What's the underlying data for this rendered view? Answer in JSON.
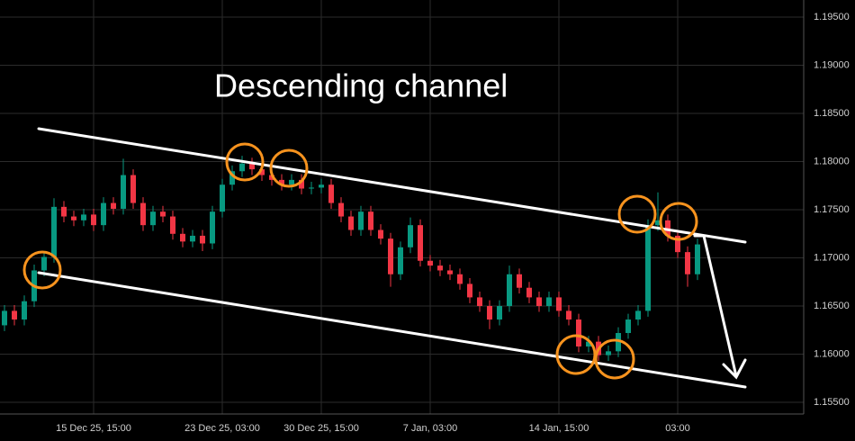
{
  "chart_data": {
    "type": "candlestick",
    "title": "Descending channel",
    "categories": [
      null,
      null,
      null,
      null,
      null,
      null,
      null,
      null,
      null,
      "15 Dec 25, 15:00",
      null,
      null,
      null,
      null,
      null,
      null,
      null,
      null,
      null,
      null,
      null,
      null,
      "23 Dec 25, 03:00",
      null,
      null,
      null,
      null,
      null,
      null,
      null,
      null,
      null,
      "30 Dec 25, 15:00",
      null,
      null,
      null,
      null,
      null,
      null,
      null,
      null,
      null,
      null,
      "7 Jan, 03:00",
      null,
      null,
      null,
      null,
      null,
      null,
      null,
      null,
      null,
      null,
      null,
      null,
      "14 Jan, 15:00",
      null,
      null,
      null,
      null,
      null,
      null,
      null,
      null,
      null,
      null,
      null,
      "03:00",
      null,
      null
    ],
    "open": [
      1.163,
      1.1645,
      1.1636,
      1.1655,
      1.1687,
      1.1701,
      1.1753,
      1.1743,
      1.1739,
      1.1745,
      1.1734,
      1.1757,
      1.1751,
      1.1786,
      1.1757,
      1.1734,
      1.1748,
      1.1743,
      1.1725,
      1.1717,
      1.1723,
      1.1715,
      1.1748,
      1.1776,
      1.179,
      1.1798,
      1.1792,
      1.1786,
      1.1781,
      1.1776,
      1.1781,
      1.1772,
      1.1773,
      1.1776,
      1.1757,
      1.1743,
      1.1729,
      1.1748,
      1.1729,
      1.172,
      1.1683,
      1.1711,
      1.1734,
      1.1697,
      1.1692,
      1.1687,
      1.1683,
      1.1673,
      1.1659,
      1.165,
      1.1636,
      1.165,
      1.1683,
      1.1669,
      1.1659,
      1.165,
      1.1659,
      1.1645,
      1.1636,
      1.1608,
      1.1613,
      1.1599,
      1.1603,
      1.1622,
      1.1636,
      1.1645,
      1.1734,
      1.1739,
      1.1723,
      1.1706,
      1.1683
    ],
    "high": [
      1.1651,
      1.1651,
      1.1661,
      1.1693,
      1.1707,
      1.1762,
      1.1759,
      1.1749,
      1.1751,
      1.1751,
      1.1763,
      1.1763,
      1.1803,
      1.1792,
      1.1763,
      1.1754,
      1.1754,
      1.1749,
      1.1731,
      1.1729,
      1.1729,
      1.1754,
      1.1782,
      1.1796,
      1.1806,
      1.1804,
      1.1798,
      1.1792,
      1.1787,
      1.1787,
      1.1787,
      1.1779,
      1.1782,
      1.1782,
      1.1763,
      1.1749,
      1.1754,
      1.1754,
      1.1735,
      1.1726,
      1.1717,
      1.1742,
      1.174,
      1.1703,
      1.1698,
      1.1693,
      1.1689,
      1.1679,
      1.1665,
      1.1656,
      1.1656,
      1.1692,
      1.1689,
      1.1675,
      1.1665,
      1.1665,
      1.1665,
      1.1651,
      1.1642,
      1.1619,
      1.1619,
      1.1609,
      1.1628,
      1.1642,
      1.1651,
      1.174,
      1.1768,
      1.1745,
      1.1729,
      1.1712,
      1.172
    ],
    "low": [
      1.1624,
      1.163,
      1.163,
      1.1649,
      1.1681,
      1.1695,
      1.1737,
      1.1733,
      1.1733,
      1.1728,
      1.1728,
      1.1745,
      1.1745,
      1.1751,
      1.1728,
      1.1728,
      1.1737,
      1.1719,
      1.1711,
      1.1711,
      1.1707,
      1.1709,
      1.1742,
      1.177,
      1.1784,
      1.1786,
      1.178,
      1.1775,
      1.177,
      1.177,
      1.1766,
      1.1766,
      1.1767,
      1.1751,
      1.1737,
      1.1723,
      1.1723,
      1.1723,
      1.1714,
      1.167,
      1.1677,
      1.1705,
      1.1691,
      1.1686,
      1.1681,
      1.1677,
      1.1667,
      1.1653,
      1.1644,
      1.1626,
      1.163,
      1.1644,
      1.1663,
      1.1653,
      1.1644,
      1.1644,
      1.1639,
      1.163,
      1.1602,
      1.1602,
      1.1593,
      1.1593,
      1.1597,
      1.1616,
      1.163,
      1.1639,
      1.1728,
      1.1717,
      1.17,
      1.167,
      1.1677
    ],
    "close": [
      1.1645,
      1.1636,
      1.1655,
      1.1687,
      1.1701,
      1.1753,
      1.1743,
      1.1739,
      1.1745,
      1.1734,
      1.1757,
      1.1751,
      1.1786,
      1.1757,
      1.1734,
      1.1748,
      1.1743,
      1.1725,
      1.1717,
      1.1723,
      1.1715,
      1.1748,
      1.1776,
      1.179,
      1.1798,
      1.1792,
      1.1786,
      1.1781,
      1.1776,
      1.1781,
      1.1772,
      1.1773,
      1.1776,
      1.1757,
      1.1743,
      1.1729,
      1.1748,
      1.1729,
      1.172,
      1.1683,
      1.1711,
      1.1734,
      1.1697,
      1.1692,
      1.1687,
      1.1683,
      1.1673,
      1.1659,
      1.165,
      1.1636,
      1.165,
      1.1683,
      1.1669,
      1.1659,
      1.165,
      1.1659,
      1.1645,
      1.1636,
      1.1608,
      1.1613,
      1.1599,
      1.1603,
      1.1622,
      1.1636,
      1.1645,
      1.1734,
      1.1739,
      1.1723,
      1.1706,
      1.1683,
      1.1714
    ],
    "up_color": "#089981",
    "down_color": "#f23645",
    "ylim": [
      1.15379,
      1.19678
    ],
    "yticks": [
      {
        "value": 1.155,
        "label": "1.15500"
      },
      {
        "value": 1.16,
        "label": "1.16000"
      },
      {
        "value": 1.165,
        "label": "1.16500"
      },
      {
        "value": 1.17,
        "label": "1.17000"
      },
      {
        "value": 1.175,
        "label": "1.17500"
      },
      {
        "value": 1.18,
        "label": "1.18000"
      },
      {
        "value": 1.185,
        "label": "1.18500"
      },
      {
        "value": 1.19,
        "label": "1.19000"
      },
      {
        "value": 1.195,
        "label": "1.19500"
      }
    ],
    "grid": true
  }
}
